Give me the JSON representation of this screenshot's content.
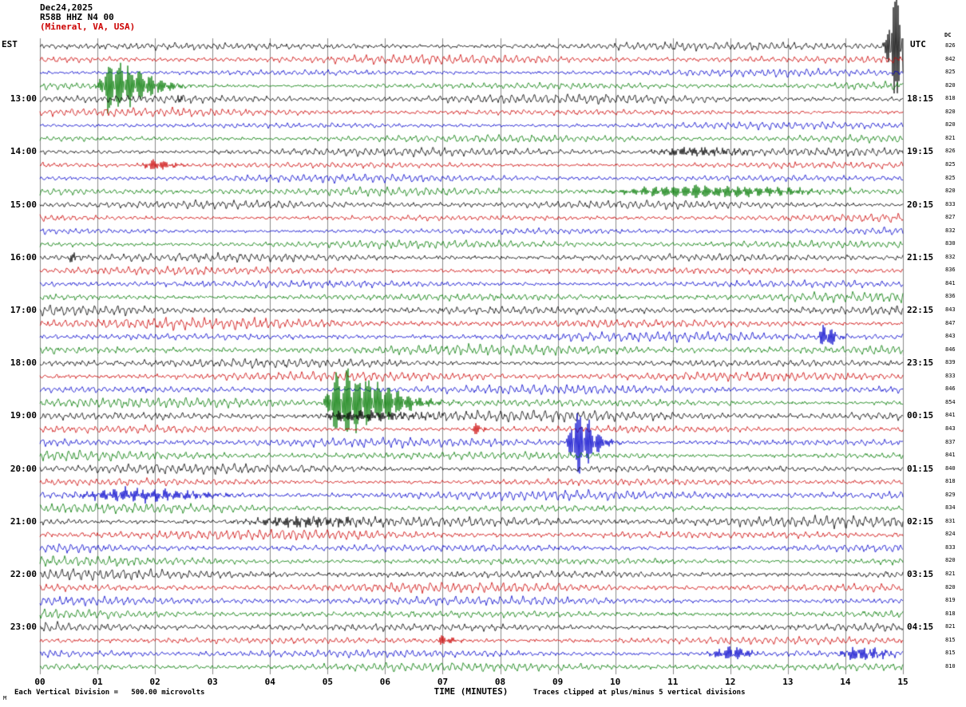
{
  "header": {
    "date": "Dec24,2025",
    "station": "R58B HHZ N4 00",
    "location": "(Mineral, VA, USA)"
  },
  "left_axis": {
    "label": "EST",
    "ticks": [
      "13:00",
      "14:00",
      "15:00",
      "16:00",
      "17:00",
      "18:00",
      "19:00",
      "20:00",
      "21:00",
      "22:00",
      "23:00"
    ]
  },
  "right_axis": {
    "label": "UTC",
    "dc_label": "DC",
    "ticks": [
      "18:15",
      "19:15",
      "20:15",
      "21:15",
      "22:15",
      "23:15",
      "00:15",
      "01:15",
      "02:15",
      "03:15",
      "04:15"
    ],
    "dc_values": [
      826,
      842,
      825,
      820,
      818,
      820,
      820,
      821,
      826,
      825,
      825,
      820,
      833,
      827,
      832,
      830,
      832,
      836,
      841,
      836,
      843,
      847,
      843,
      846,
      839,
      833,
      846,
      854,
      841,
      843,
      837,
      841,
      840,
      818,
      829,
      834,
      831,
      824,
      833,
      820,
      821,
      820,
      819,
      818,
      821,
      815,
      815,
      810
    ]
  },
  "x_axis": {
    "label": "TIME (MINUTES)",
    "ticks": [
      "00",
      "01",
      "02",
      "03",
      "04",
      "05",
      "06",
      "07",
      "08",
      "09",
      "10",
      "11",
      "12",
      "13",
      "14",
      "15"
    ]
  },
  "footer": {
    "left": "Each Vertical Division =   500.00 microvolts",
    "right": "Traces clipped at plus/minus 5 vertical divisions",
    "mark": "M"
  },
  "chart_data": {
    "type": "line",
    "subtype": "seismogram_helicorder",
    "title": "R58B HHZ N4 00 (Mineral, VA, USA) Dec24,2025",
    "xlabel": "TIME (MINUTES)",
    "x_range_minutes": [
      0,
      15
    ],
    "rows": 48,
    "minutes_per_row": 15,
    "traces_per_hour": 4,
    "first_row_est": "12:00",
    "hour_label_rows_start": 4,
    "clip_divisions": 5,
    "microvolts_per_division": 500.0,
    "trace_colors": [
      "#000000",
      "#cc0000",
      "#0000cc",
      "#007a00"
    ],
    "grid_color": "#8a8a8a",
    "row_noise_amp": [
      4.0,
      3.4,
      3.2,
      3.4,
      3.6,
      3.2,
      3.0,
      3.2,
      3.4,
      3.2,
      3.0,
      3.4,
      3.4,
      3.2,
      3.0,
      3.2,
      4.0,
      3.8,
      3.6,
      3.8,
      4.6,
      4.2,
      3.8,
      4.0,
      4.0,
      3.8,
      3.6,
      3.8,
      4.2,
      3.6,
      3.6,
      3.8,
      4.0,
      3.6,
      3.8,
      3.6,
      4.4,
      4.0,
      4.0,
      3.8,
      4.2,
      3.8,
      3.6,
      3.8,
      4.0,
      3.6,
      3.6,
      3.4
    ],
    "events": [
      {
        "row": 0,
        "minute": 14.82,
        "attack": 0.06,
        "decay": 0.28,
        "amp": 80,
        "note": "large clipped burst, top right"
      },
      {
        "row": 3,
        "minute": 1.18,
        "attack": 0.08,
        "decay": 0.55,
        "amp": 36,
        "note": "green burst ~12:45 EST"
      },
      {
        "row": 4,
        "minute": 2.4,
        "attack": 0.04,
        "decay": 0.12,
        "amp": 5
      },
      {
        "row": 8,
        "minute": 11.3,
        "attack": 0.4,
        "decay": 0.6,
        "amp": 5
      },
      {
        "row": 9,
        "minute": 1.95,
        "attack": 0.1,
        "decay": 0.28,
        "amp": 7
      },
      {
        "row": 11,
        "minute": 11.4,
        "attack": 0.9,
        "decay": 1.3,
        "amp": 8,
        "note": "green elevated noise ~14:45 EST"
      },
      {
        "row": 16,
        "minute": 0.55,
        "attack": 0.04,
        "decay": 0.1,
        "amp": 6
      },
      {
        "row": 22,
        "minute": 13.62,
        "attack": 0.05,
        "decay": 0.16,
        "amp": 16,
        "note": "blue spike ~17:30 EST"
      },
      {
        "row": 27,
        "minute": 5.12,
        "attack": 0.08,
        "decay": 0.75,
        "amp": 46,
        "note": "green burst ~18:45 EST"
      },
      {
        "row": 28,
        "minute": 5.35,
        "attack": 0.25,
        "decay": 1.0,
        "amp": 7
      },
      {
        "row": 29,
        "minute": 7.58,
        "attack": 0.03,
        "decay": 0.09,
        "amp": 9
      },
      {
        "row": 30,
        "minute": 9.27,
        "attack": 0.05,
        "decay": 0.3,
        "amp": 44,
        "note": "blue spike ~19:30 EST"
      },
      {
        "row": 34,
        "minute": 1.6,
        "attack": 0.55,
        "decay": 0.95,
        "amp": 8,
        "note": "blue elevated noise ~20:30 EST"
      },
      {
        "row": 36,
        "minute": 4.5,
        "attack": 0.55,
        "decay": 0.85,
        "amp": 6
      },
      {
        "row": 45,
        "minute": 7.0,
        "attack": 0.07,
        "decay": 0.16,
        "amp": 7
      },
      {
        "row": 46,
        "minute": 11.95,
        "attack": 0.18,
        "decay": 0.3,
        "amp": 9
      },
      {
        "row": 46,
        "minute": 14.2,
        "attack": 0.18,
        "decay": 0.35,
        "amp": 9
      }
    ]
  }
}
